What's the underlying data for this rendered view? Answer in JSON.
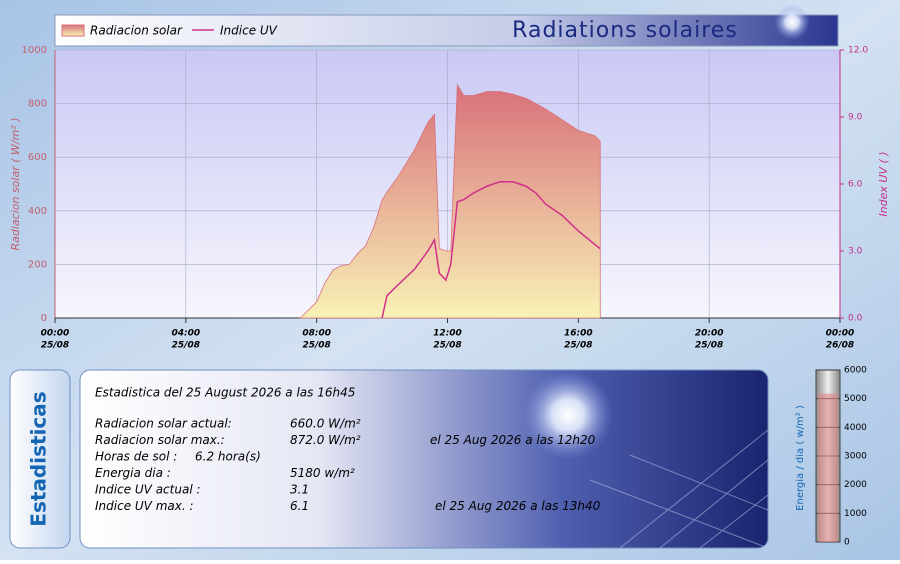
{
  "chart_data": [
    {
      "type": "area-line",
      "title": "Radiations solaires",
      "y_label": "Radiacion solar ( W/m² )",
      "y2_label": "Index UV ( )",
      "x": [
        7.5,
        8,
        8.25,
        8.5,
        8.75,
        9,
        9.25,
        9.5,
        9.75,
        10,
        10.15,
        10.5,
        11,
        11.4,
        11.6,
        11.75,
        11.95,
        12.1,
        12.3,
        12.5,
        12.8,
        13.2,
        13.6,
        14,
        14.4,
        14.7,
        15,
        15.5,
        16,
        16.5,
        16.67
      ],
      "series": [
        {
          "name": "Radiacion solar",
          "color": "#d8707a",
          "values": [
            0,
            60,
            130,
            180,
            195,
            200,
            240,
            270,
            340,
            440,
            470,
            530,
            630,
            730,
            760,
            260,
            250,
            250,
            870,
            830,
            830,
            845,
            845,
            835,
            820,
            800,
            780,
            740,
            700,
            680,
            660
          ]
        },
        {
          "name": "Indice UV",
          "color": "#d0308a",
          "axis": "y2",
          "values": [
            null,
            null,
            null,
            null,
            null,
            null,
            null,
            null,
            null,
            0,
            1.0,
            1.5,
            2.2,
            3.0,
            3.5,
            2.0,
            1.7,
            2.4,
            5.2,
            5.3,
            5.6,
            5.9,
            6.1,
            6.1,
            5.9,
            5.6,
            5.1,
            4.6,
            3.9,
            3.3,
            3.1
          ]
        }
      ],
      "xlim": [
        0,
        24
      ],
      "xticks": [
        {
          "value": 0,
          "label": "00:00"
        },
        {
          "value": 4,
          "label": "04:00"
        },
        {
          "value": 8,
          "label": "08:00"
        },
        {
          "value": 12,
          "label": "12:00"
        },
        {
          "value": 16,
          "label": "16:00"
        },
        {
          "value": 20,
          "label": "20:00"
        },
        {
          "value": 24,
          "label": "00:00"
        }
      ],
      "xtick_dates": [
        "25/08",
        "25/08",
        "25/08",
        "25/08",
        "25/08",
        "25/08",
        "26/08"
      ],
      "ylim": [
        0,
        1000
      ],
      "yticks": [
        0,
        200,
        400,
        600,
        800,
        1000
      ],
      "y2lim": [
        0,
        12
      ],
      "y2ticks": [
        {
          "value": 0,
          "label": "0.0"
        },
        {
          "value": 3,
          "label": "3.0"
        },
        {
          "value": 6,
          "label": "6.0"
        },
        {
          "value": 9,
          "label": "9.0"
        },
        {
          "value": 12,
          "label": "12.0"
        }
      ],
      "grid": true,
      "legend": "top-left"
    },
    {
      "type": "gauge",
      "y_label": "Energia / dia ( w/m² )",
      "values": [
        5180
      ],
      "color": "#e08080",
      "ylim": [
        0,
        6000
      ],
      "yticks": [
        0,
        1000,
        2000,
        3000,
        4000,
        5000,
        6000
      ]
    }
  ],
  "stats": {
    "tab": "Estadisticas",
    "title": "Estadistica del 25 August 2026 a las 16h45",
    "rows": [
      {
        "label": "Radiacion solar actual:",
        "value": "660.0 W/m²"
      },
      {
        "label": "Radiacion solar max.:",
        "value": "872.0 W/m²",
        "note": "el 25 Aug 2026 a las 12h20"
      },
      {
        "label": "Horas de sol :",
        "value": "6.2 hora(s)"
      },
      {
        "label": "Energia dia :",
        "value": "5180 w/m²"
      },
      {
        "label": "Indice UV actual :",
        "value": "3.1"
      },
      {
        "label": "Indice UV max. :",
        "value": "6.1",
        "note": "el 25 Aug 2026 a las 13h40"
      }
    ]
  }
}
